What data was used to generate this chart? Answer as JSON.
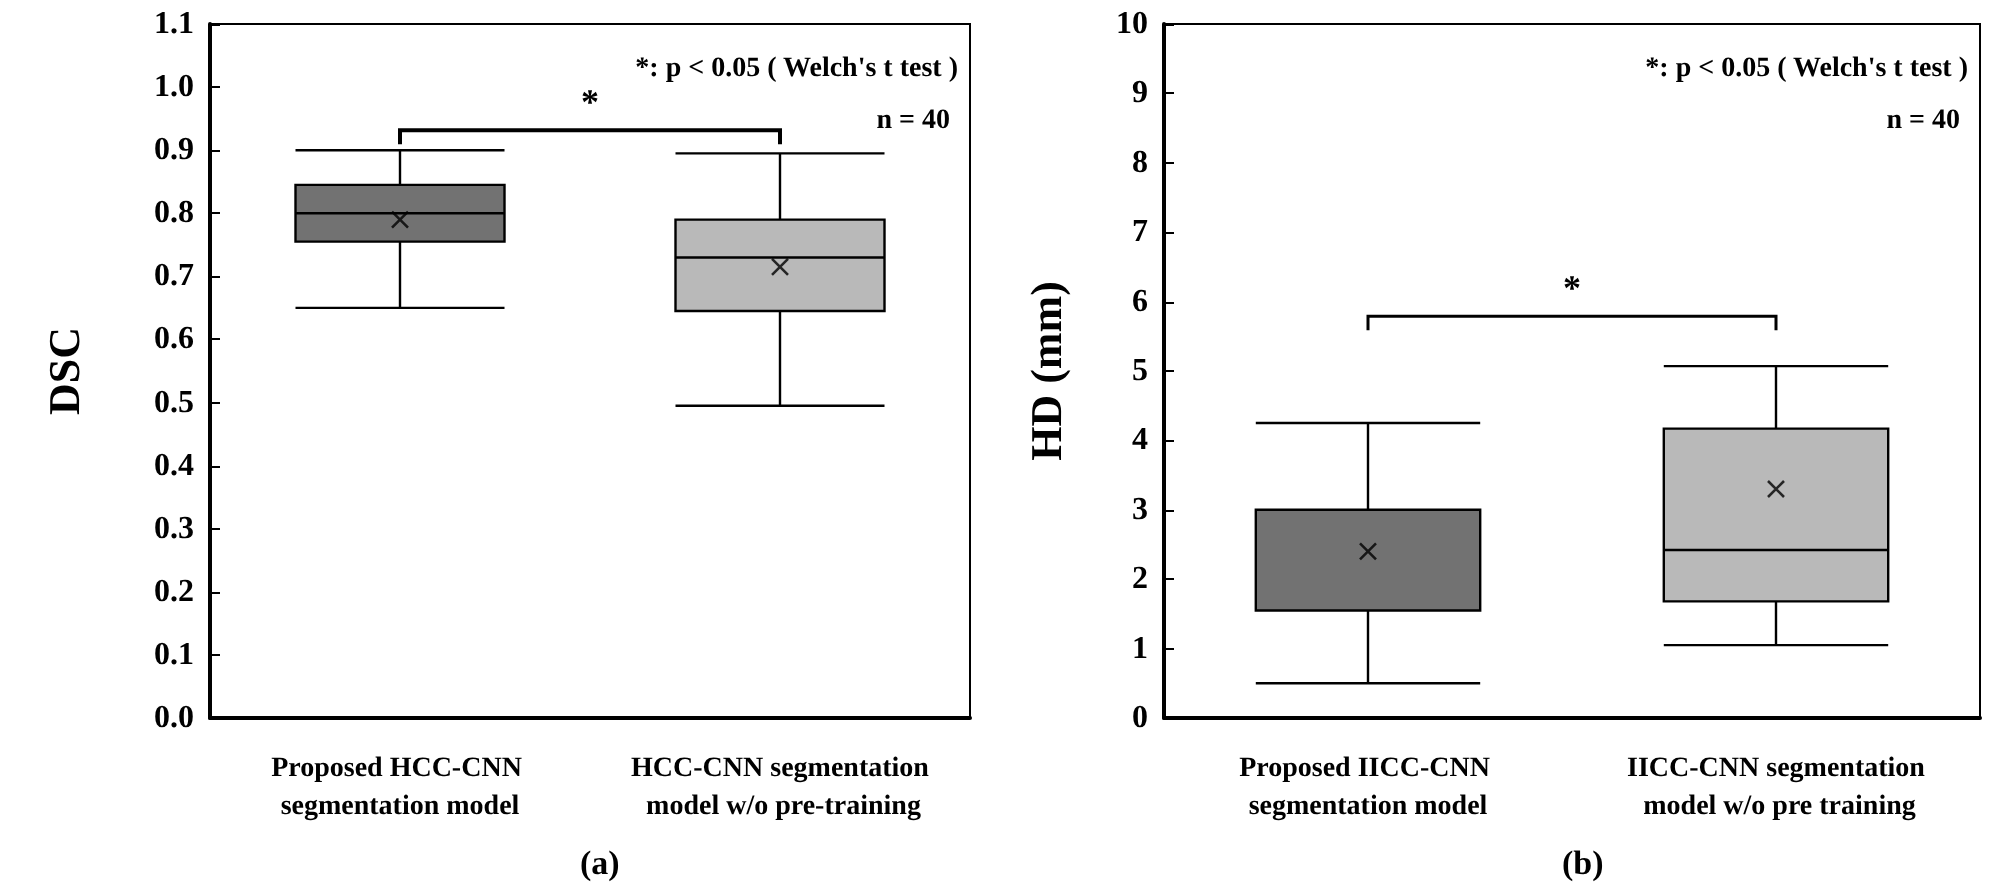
{
  "chart_data": [
    {
      "type": "box",
      "title": "(a)",
      "ylabel": "DSC",
      "categories": [
        "Proposed HCC-CNN segmentation model",
        "HCC-CNN segmentation model w/o pre-training"
      ],
      "boxes": [
        {
          "low": 0.65,
          "q1": 0.755,
          "median": 0.8,
          "q3": 0.845,
          "high": 0.9,
          "mean": 0.79
        },
        {
          "low": 0.495,
          "q1": 0.645,
          "median": 0.73,
          "q3": 0.79,
          "high": 0.895,
          "mean": 0.715
        }
      ],
      "colors": [
        "#727272",
        "#b9b9b9"
      ],
      "marker": "cross",
      "ylim": [
        0,
        1.1
      ],
      "yticks": [
        {
          "value": 0,
          "label": "0.0"
        },
        {
          "value": 0.1,
          "label": "0.1"
        },
        {
          "value": 0.2,
          "label": "0.2"
        },
        {
          "value": 0.3,
          "label": "0.3"
        },
        {
          "value": 0.4,
          "label": "0.4"
        },
        {
          "value": 0.5,
          "label": "0.5"
        },
        {
          "value": 0.6,
          "label": "0.6"
        },
        {
          "value": 0.7,
          "label": "0.7"
        },
        {
          "value": 0.8,
          "label": "0.8"
        },
        {
          "value": 0.9,
          "label": "0.9"
        },
        {
          "value": 1,
          "label": "1.0"
        },
        {
          "value": 1.1,
          "label": "1.1"
        }
      ],
      "annotations": [
        "*: p < 0.05 ( Welch's t test )",
        "n = 40",
        "*"
      ],
      "grid": false
    },
    {
      "type": "box",
      "title": "(b)",
      "ylabel": "HD (mm)",
      "categories": [
        "Proposed IICC-CNN segmentation model",
        "IICC-CNN segmentation model w/o pre training"
      ],
      "boxes": [
        {
          "low": 0.5,
          "q1": 1.55,
          "median": 3.0,
          "q3": 3.0,
          "high": 4.25,
          "mean": 2.4
        },
        {
          "low": 1.05,
          "q1": 1.68,
          "median": 2.42,
          "q3": 4.17,
          "high": 5.07,
          "mean": 3.3
        }
      ],
      "colors": [
        "#727272",
        "#b9b9b9"
      ],
      "marker": "cross",
      "ylim": [
        0,
        10
      ],
      "yticks": [
        0,
        1,
        2,
        3,
        4,
        5,
        6,
        7,
        8,
        9,
        10
      ],
      "annotations": [
        "*: p < 0.05 ( Welch's t test )",
        "n = 40",
        "*"
      ],
      "grid": false
    }
  ]
}
